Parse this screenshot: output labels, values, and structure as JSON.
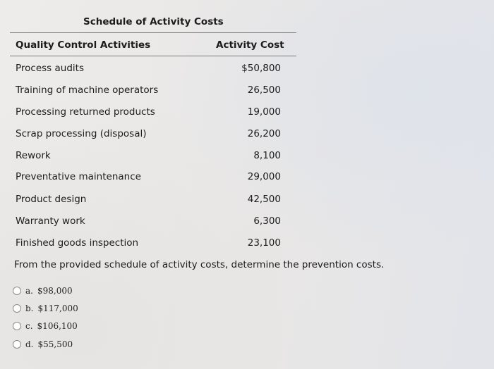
{
  "schedule": {
    "title": "Schedule of Activity Costs",
    "col_activity": "Quality Control Activities",
    "col_cost": "Activity Cost",
    "rows": [
      {
        "activity": "Process audits",
        "cost": "$50,800"
      },
      {
        "activity": "Training of machine operators",
        "cost": "26,500"
      },
      {
        "activity": "Processing returned products",
        "cost": "19,000"
      },
      {
        "activity": "Scrap processing (disposal)",
        "cost": "26,200"
      },
      {
        "activity": "Rework",
        "cost": "8,100"
      },
      {
        "activity": "Preventative maintenance",
        "cost": "29,000"
      },
      {
        "activity": "Product design",
        "cost": "42,500"
      },
      {
        "activity": "Warranty work",
        "cost": "6,300"
      },
      {
        "activity": "Finished goods inspection",
        "cost": "23,100"
      }
    ]
  },
  "question": {
    "text": "From the provided schedule of activity costs, determine the prevention costs.",
    "options": [
      {
        "letter": "a.",
        "value": "$98,000"
      },
      {
        "letter": "b.",
        "value": "$117,000"
      },
      {
        "letter": "c.",
        "value": "$106,100"
      },
      {
        "letter": "d.",
        "value": "$55,500"
      }
    ]
  }
}
